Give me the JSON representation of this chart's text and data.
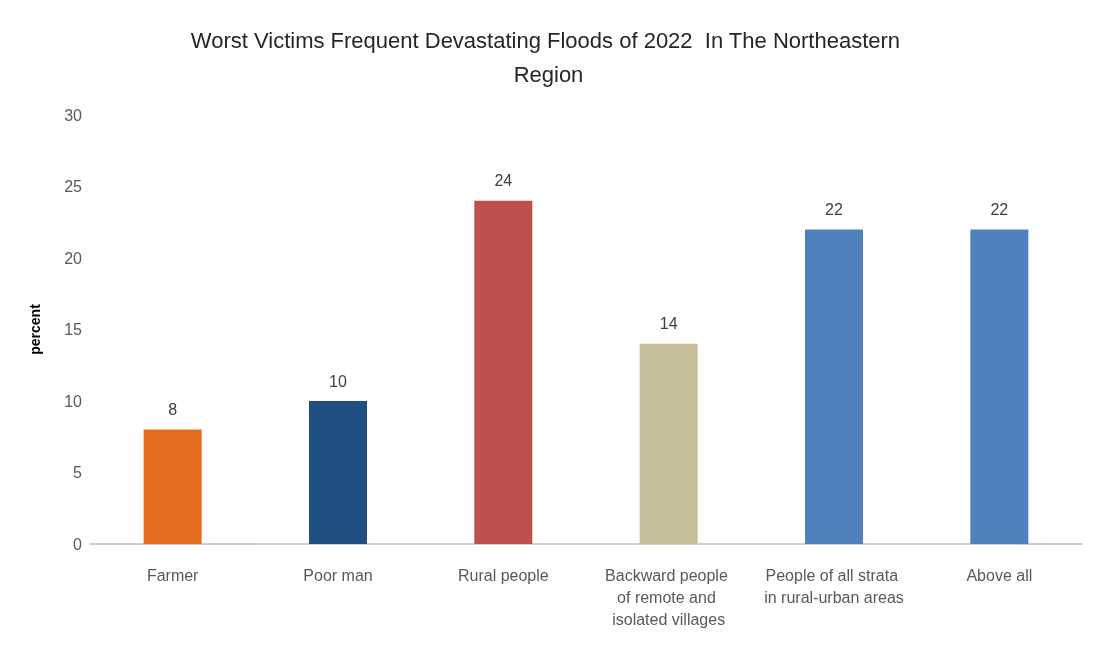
{
  "chart_data": {
    "type": "bar",
    "title": "Worst Victims Frequent Devastating Floods of 2022  In The Northeastern Region",
    "ylabel": "percent",
    "categories": [
      "Farmer",
      "Poor man",
      "Rural people",
      "Backward people of remote and isolated villages",
      "People of all strata in rural-urban areas",
      "Above all"
    ],
    "values": [
      8,
      10,
      24,
      14,
      22,
      22
    ],
    "colors": [
      "#e46c1f",
      "#1f4e80",
      "#c0504d",
      "#c4bd97",
      "#4f81bd",
      "#4f81bd"
    ],
    "ylim": [
      0,
      30
    ],
    "yticks": [
      0,
      5,
      10,
      15,
      20,
      25,
      30
    ],
    "grid": false,
    "data_labels": true
  }
}
